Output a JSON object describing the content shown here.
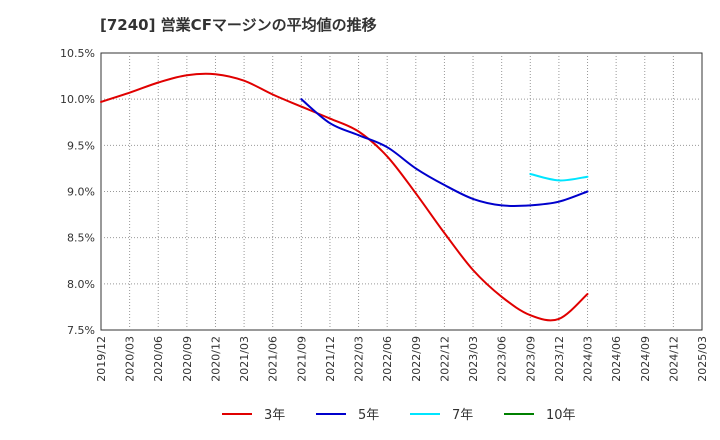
{
  "chart_data": {
    "type": "line",
    "title": "[7240]  営業CFマージンの平均値の推移",
    "xlabel": "",
    "ylabel": "",
    "ylim": [
      7.5,
      10.5
    ],
    "y_ticks": [
      "10.5%",
      "10.0%",
      "9.5%",
      "9.0%",
      "8.5%",
      "8.0%",
      "7.5%"
    ],
    "x_ticks": [
      "2019/12",
      "2020/03",
      "2020/06",
      "2020/09",
      "2020/12",
      "2021/03",
      "2021/06",
      "2021/09",
      "2021/12",
      "2022/03",
      "2022/06",
      "2022/09",
      "2022/12",
      "2023/03",
      "2023/06",
      "2023/09",
      "2023/12",
      "2024/03",
      "2024/06",
      "2024/09",
      "2024/12",
      "2025/03"
    ],
    "grid": true,
    "legend_position": "bottom",
    "series": [
      {
        "name": "3年",
        "color": "#e00000",
        "points": [
          [
            "2019/12",
            9.97
          ],
          [
            "2020/03",
            10.07
          ],
          [
            "2020/06",
            10.18
          ],
          [
            "2020/09",
            10.26
          ],
          [
            "2020/12",
            10.27
          ],
          [
            "2021/03",
            10.2
          ],
          [
            "2021/06",
            10.05
          ],
          [
            "2021/09",
            9.92
          ],
          [
            "2021/12",
            9.79
          ],
          [
            "2022/03",
            9.65
          ],
          [
            "2022/06",
            9.38
          ],
          [
            "2022/09",
            8.98
          ],
          [
            "2022/12",
            8.55
          ],
          [
            "2023/03",
            8.15
          ],
          [
            "2023/06",
            7.86
          ],
          [
            "2023/09",
            7.66
          ],
          [
            "2023/12",
            7.62
          ],
          [
            "2024/03",
            7.89
          ]
        ]
      },
      {
        "name": "5年",
        "color": "#0000cc",
        "points": [
          [
            "2021/09",
            10.0
          ],
          [
            "2021/12",
            9.74
          ],
          [
            "2022/03",
            9.61
          ],
          [
            "2022/06",
            9.48
          ],
          [
            "2022/09",
            9.25
          ],
          [
            "2022/12",
            9.07
          ],
          [
            "2023/03",
            8.92
          ],
          [
            "2023/06",
            8.85
          ],
          [
            "2023/09",
            8.85
          ],
          [
            "2023/12",
            8.89
          ],
          [
            "2024/03",
            9.0
          ]
        ]
      },
      {
        "name": "7年",
        "color": "#00e5ff",
        "points": [
          [
            "2023/09",
            9.19
          ],
          [
            "2023/12",
            9.12
          ],
          [
            "2024/03",
            9.16
          ]
        ]
      },
      {
        "name": "10年",
        "color": "#008000",
        "points": []
      }
    ]
  }
}
